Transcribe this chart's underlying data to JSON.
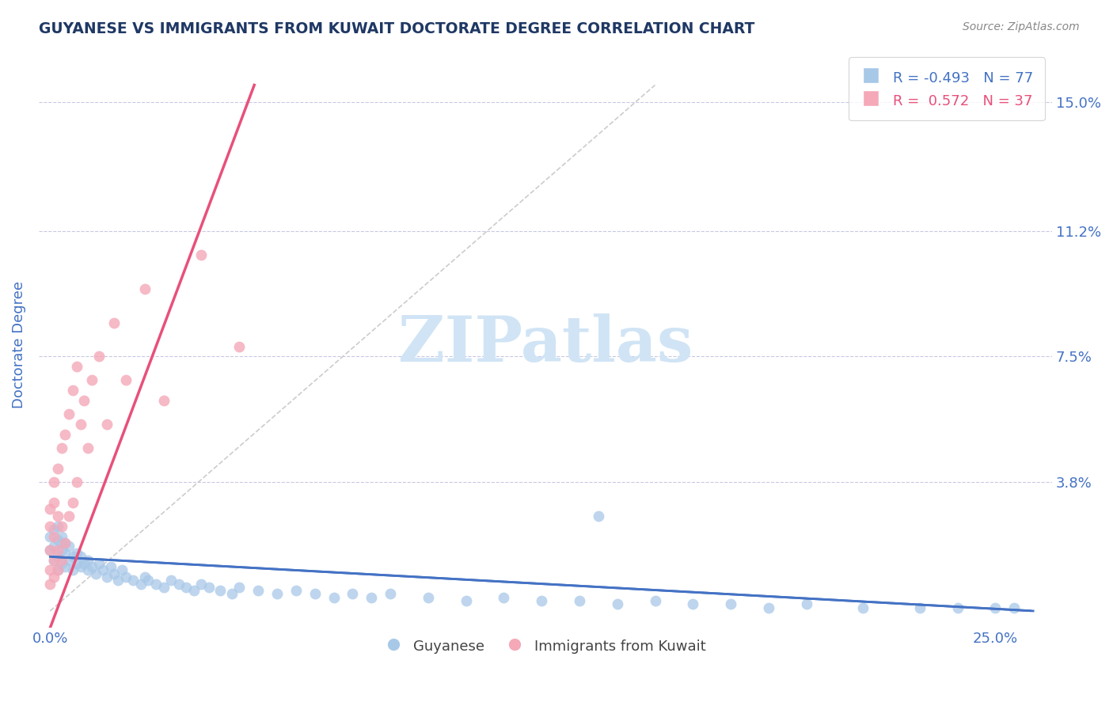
{
  "title": "GUYANESE VS IMMIGRANTS FROM KUWAIT DOCTORATE DEGREE CORRELATION CHART",
  "source": "Source: ZipAtlas.com",
  "ylabel_label": "Doctorate Degree",
  "xlim": [
    -0.003,
    0.265
  ],
  "ylim": [
    -0.005,
    0.162
  ],
  "color_blue": "#A8C8E8",
  "color_pink": "#F4A8B8",
  "color_line_blue": "#4472C4",
  "color_line_pink": "#E8507A",
  "color_title": "#1F3864",
  "color_axis": "#4472C4",
  "color_grid": "#AAAACC",
  "watermark_text": "ZIPatlas",
  "watermark_color": "#D0E4F5",
  "y_tick_pos": [
    0.038,
    0.075,
    0.112,
    0.15
  ],
  "y_tick_labels": [
    "3.8%",
    "7.5%",
    "11.2%",
    "15.0%"
  ],
  "x_tick_pos": [
    0.0,
    0.25
  ],
  "x_tick_labels": [
    "0.0%",
    "25.0%"
  ],
  "legend_entries": [
    {
      "r": "R = -0.493",
      "n": "N = 77",
      "color": "#4472C4",
      "marker_color": "#A8C8E8"
    },
    {
      "r": "R =  0.572",
      "n": "N = 37",
      "color": "#E8507A",
      "marker_color": "#F4A8B8"
    }
  ],
  "guyanese_x": [
    0.0,
    0.0,
    0.001,
    0.001,
    0.001,
    0.002,
    0.002,
    0.002,
    0.003,
    0.003,
    0.003,
    0.004,
    0.004,
    0.005,
    0.005,
    0.006,
    0.006,
    0.007,
    0.007,
    0.008,
    0.008,
    0.009,
    0.01,
    0.01,
    0.011,
    0.012,
    0.013,
    0.014,
    0.015,
    0.016,
    0.017,
    0.018,
    0.019,
    0.02,
    0.022,
    0.024,
    0.025,
    0.026,
    0.028,
    0.03,
    0.032,
    0.034,
    0.036,
    0.038,
    0.04,
    0.042,
    0.045,
    0.048,
    0.05,
    0.055,
    0.06,
    0.065,
    0.07,
    0.075,
    0.08,
    0.085,
    0.09,
    0.1,
    0.11,
    0.12,
    0.13,
    0.14,
    0.15,
    0.16,
    0.17,
    0.18,
    0.19,
    0.2,
    0.215,
    0.23,
    0.24,
    0.25,
    0.255,
    0.002,
    0.003,
    0.004,
    0.145
  ],
  "guyanese_y": [
    0.018,
    0.022,
    0.015,
    0.019,
    0.024,
    0.012,
    0.016,
    0.021,
    0.014,
    0.018,
    0.02,
    0.013,
    0.017,
    0.015,
    0.019,
    0.012,
    0.016,
    0.014,
    0.017,
    0.013,
    0.016,
    0.014,
    0.012,
    0.015,
    0.013,
    0.011,
    0.014,
    0.012,
    0.01,
    0.013,
    0.011,
    0.009,
    0.012,
    0.01,
    0.009,
    0.008,
    0.01,
    0.009,
    0.008,
    0.007,
    0.009,
    0.008,
    0.007,
    0.006,
    0.008,
    0.007,
    0.006,
    0.005,
    0.007,
    0.006,
    0.005,
    0.006,
    0.005,
    0.004,
    0.005,
    0.004,
    0.005,
    0.004,
    0.003,
    0.004,
    0.003,
    0.003,
    0.002,
    0.003,
    0.002,
    0.002,
    0.001,
    0.002,
    0.001,
    0.001,
    0.001,
    0.001,
    0.001,
    0.025,
    0.022,
    0.02,
    0.028
  ],
  "kuwait_x": [
    0.0,
    0.0,
    0.0,
    0.0,
    0.0,
    0.001,
    0.001,
    0.001,
    0.001,
    0.001,
    0.002,
    0.002,
    0.002,
    0.002,
    0.003,
    0.003,
    0.003,
    0.004,
    0.004,
    0.005,
    0.005,
    0.006,
    0.006,
    0.007,
    0.007,
    0.008,
    0.009,
    0.01,
    0.011,
    0.013,
    0.015,
    0.017,
    0.02,
    0.025,
    0.03,
    0.04,
    0.05
  ],
  "kuwait_y": [
    0.008,
    0.012,
    0.018,
    0.025,
    0.03,
    0.01,
    0.015,
    0.022,
    0.032,
    0.038,
    0.012,
    0.018,
    0.028,
    0.042,
    0.015,
    0.025,
    0.048,
    0.02,
    0.052,
    0.028,
    0.058,
    0.032,
    0.065,
    0.038,
    0.072,
    0.055,
    0.062,
    0.048,
    0.068,
    0.075,
    0.055,
    0.085,
    0.068,
    0.095,
    0.062,
    0.105,
    0.078
  ]
}
